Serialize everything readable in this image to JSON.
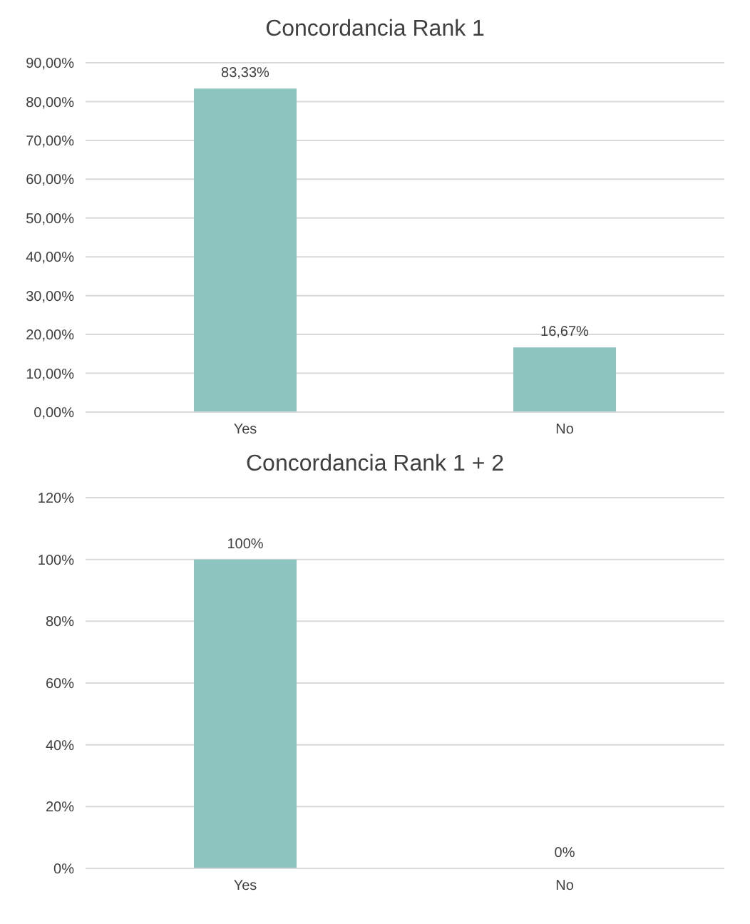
{
  "chart_data": [
    {
      "type": "bar",
      "title": "Concordancia Rank 1",
      "categories": [
        "Yes",
        "No"
      ],
      "values": [
        83.33,
        16.67
      ],
      "value_labels": [
        "83,33%",
        "16,67%"
      ],
      "color": "#8cc4c0",
      "ylim": [
        0,
        90
      ],
      "yticks": [
        {
          "value": 0,
          "label": "0,00%"
        },
        {
          "value": 10,
          "label": "10,00%"
        },
        {
          "value": 20,
          "label": "20,00%"
        },
        {
          "value": 30,
          "label": "30,00%"
        },
        {
          "value": 40,
          "label": "40,00%"
        },
        {
          "value": 50,
          "label": "50,00%"
        },
        {
          "value": 60,
          "label": "60,00%"
        },
        {
          "value": 70,
          "label": "70,00%"
        },
        {
          "value": 80,
          "label": "80,00%"
        },
        {
          "value": 90,
          "label": "90,00%"
        }
      ],
      "grid": "y"
    },
    {
      "type": "bar",
      "title": "Concordancia Rank 1 + 2",
      "categories": [
        "Yes",
        "No"
      ],
      "values": [
        100,
        0
      ],
      "value_labels": [
        "100%",
        "0%"
      ],
      "color": "#8cc4c0",
      "ylim": [
        0,
        120
      ],
      "yticks": [
        {
          "value": 0,
          "label": "0%"
        },
        {
          "value": 20,
          "label": "20%"
        },
        {
          "value": 40,
          "label": "40%"
        },
        {
          "value": 60,
          "label": "60%"
        },
        {
          "value": 80,
          "label": "80%"
        },
        {
          "value": 100,
          "label": "100%"
        },
        {
          "value": 120,
          "label": "120%"
        }
      ],
      "grid": "y"
    }
  ]
}
